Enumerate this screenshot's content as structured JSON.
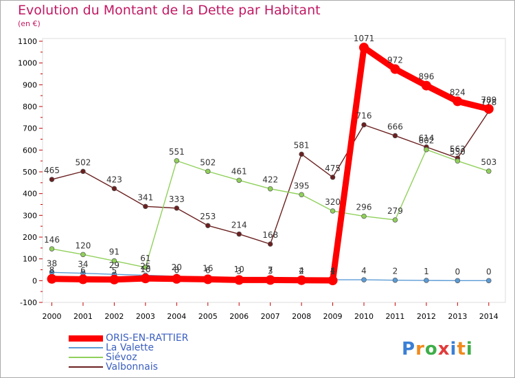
{
  "header": {
    "title": "Evolution du Montant de la Dette par Habitant",
    "unit": "(en €)"
  },
  "logo": {
    "text": "Proxiti",
    "letters": [
      "P",
      "r",
      "o",
      "x",
      "i",
      "t",
      "i"
    ],
    "colors": [
      "#3a7fd5",
      "#f08a1d",
      "#3fae49",
      "#e23b3b",
      "#3a7fd5",
      "#f08a1d",
      "#3fae49"
    ]
  },
  "chart_data": {
    "type": "line",
    "title": "Evolution du Montant de la Dette par Habitant",
    "subtitle": "(en €)",
    "x": [
      2000,
      2001,
      2002,
      2003,
      2004,
      2005,
      2006,
      2007,
      2008,
      2009,
      2010,
      2011,
      2012,
      2013,
      2014
    ],
    "ylim": [
      -100,
      1100
    ],
    "yticks": [
      -100,
      0,
      100,
      200,
      300,
      400,
      500,
      600,
      700,
      800,
      900,
      1000,
      1100
    ],
    "grid": false,
    "legend_position": "bottom-left",
    "series": [
      {
        "name": "ORIS-EN-RATTIER",
        "color": "#ff0000",
        "emphasis": true,
        "values": [
          8,
          6,
          5,
          10,
          8,
          6,
          3,
          3,
          2,
          1,
          1071,
          972,
          896,
          824,
          789
        ],
        "labels": [
          "8",
          "6",
          "5",
          "10",
          "8",
          "6",
          "3",
          "3",
          "2",
          "1",
          "1071",
          "972",
          "896",
          "824",
          "789"
        ]
      },
      {
        "name": "La Valette",
        "color": "#5b9bd5",
        "values": [
          38,
          34,
          29,
          25,
          20,
          16,
          10,
          7,
          4,
          4,
          4,
          2,
          1,
          0,
          0
        ],
        "labels": [
          "38",
          "34",
          "29",
          "25",
          "20",
          "16",
          "10",
          "7",
          "4",
          "4",
          "4",
          "2",
          "1",
          "0",
          "0"
        ]
      },
      {
        "name": "Siévoz",
        "color": "#90d05a",
        "values": [
          146,
          120,
          91,
          61,
          551,
          502,
          461,
          422,
          395,
          320,
          296,
          279,
          602,
          550,
          503
        ],
        "labels": [
          "146",
          "120",
          "91",
          "61",
          "551",
          "502",
          "461",
          "422",
          "395",
          "320",
          "296",
          "279",
          "602",
          "550",
          "503"
        ]
      },
      {
        "name": "Valbonnais",
        "color": "#6b2020",
        "values": [
          465,
          502,
          423,
          341,
          333,
          253,
          214,
          168,
          581,
          475,
          716,
          666,
          614,
          563,
          778
        ],
        "labels": [
          "465",
          "502",
          "423",
          "341",
          "333",
          "253",
          "214",
          "168",
          "581",
          "475",
          "716",
          "666",
          "614",
          "563",
          "778"
        ]
      }
    ]
  }
}
